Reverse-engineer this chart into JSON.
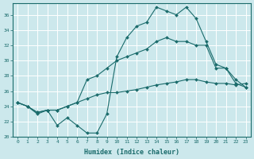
{
  "xlabel": "Humidex (Indice chaleur)",
  "bg_color": "#cce8ec",
  "grid_color": "#b0d8dc",
  "line_color": "#1a6b6b",
  "xlim": [
    -0.5,
    23.5
  ],
  "ylim": [
    20,
    37.5
  ],
  "yticks": [
    20,
    22,
    24,
    26,
    28,
    30,
    32,
    34,
    36
  ],
  "xticks": [
    0,
    1,
    2,
    3,
    4,
    5,
    6,
    7,
    8,
    9,
    10,
    11,
    12,
    13,
    14,
    15,
    16,
    17,
    18,
    19,
    20,
    21,
    22,
    23
  ],
  "line1_x": [
    0,
    1,
    2,
    3,
    4,
    5,
    6,
    7,
    8,
    9,
    10,
    11,
    12,
    13,
    14,
    15,
    16,
    17,
    18,
    19,
    20,
    21,
    22,
    23
  ],
  "line1_y": [
    24.5,
    24.0,
    23.0,
    23.5,
    21.5,
    22.5,
    21.5,
    20.5,
    20.5,
    23.0,
    30.5,
    33.0,
    34.5,
    35.0,
    37.0,
    36.5,
    36.0,
    37.0,
    35.5,
    32.5,
    29.5,
    29.0,
    27.0,
    26.5
  ],
  "line2_x": [
    0,
    1,
    2,
    3,
    4,
    5,
    6,
    7,
    8,
    9,
    10,
    11,
    12,
    13,
    14,
    15,
    16,
    17,
    18,
    19,
    20,
    21,
    22,
    23
  ],
  "line2_y": [
    24.5,
    24.0,
    23.2,
    23.5,
    23.5,
    24.0,
    24.5,
    27.5,
    28.0,
    29.0,
    30.0,
    30.5,
    31.0,
    31.5,
    32.5,
    33.0,
    32.5,
    32.5,
    32.0,
    32.0,
    29.0,
    29.0,
    27.5,
    26.5
  ],
  "line3_x": [
    0,
    1,
    2,
    3,
    4,
    5,
    6,
    7,
    8,
    9,
    10,
    11,
    12,
    13,
    14,
    15,
    16,
    17,
    18,
    19,
    20,
    21,
    22,
    23
  ],
  "line3_y": [
    24.5,
    24.0,
    23.2,
    23.5,
    23.5,
    24.0,
    24.5,
    25.0,
    25.5,
    25.8,
    25.8,
    26.0,
    26.2,
    26.5,
    26.8,
    27.0,
    27.2,
    27.5,
    27.5,
    27.2,
    27.0,
    27.0,
    26.8,
    27.0
  ]
}
